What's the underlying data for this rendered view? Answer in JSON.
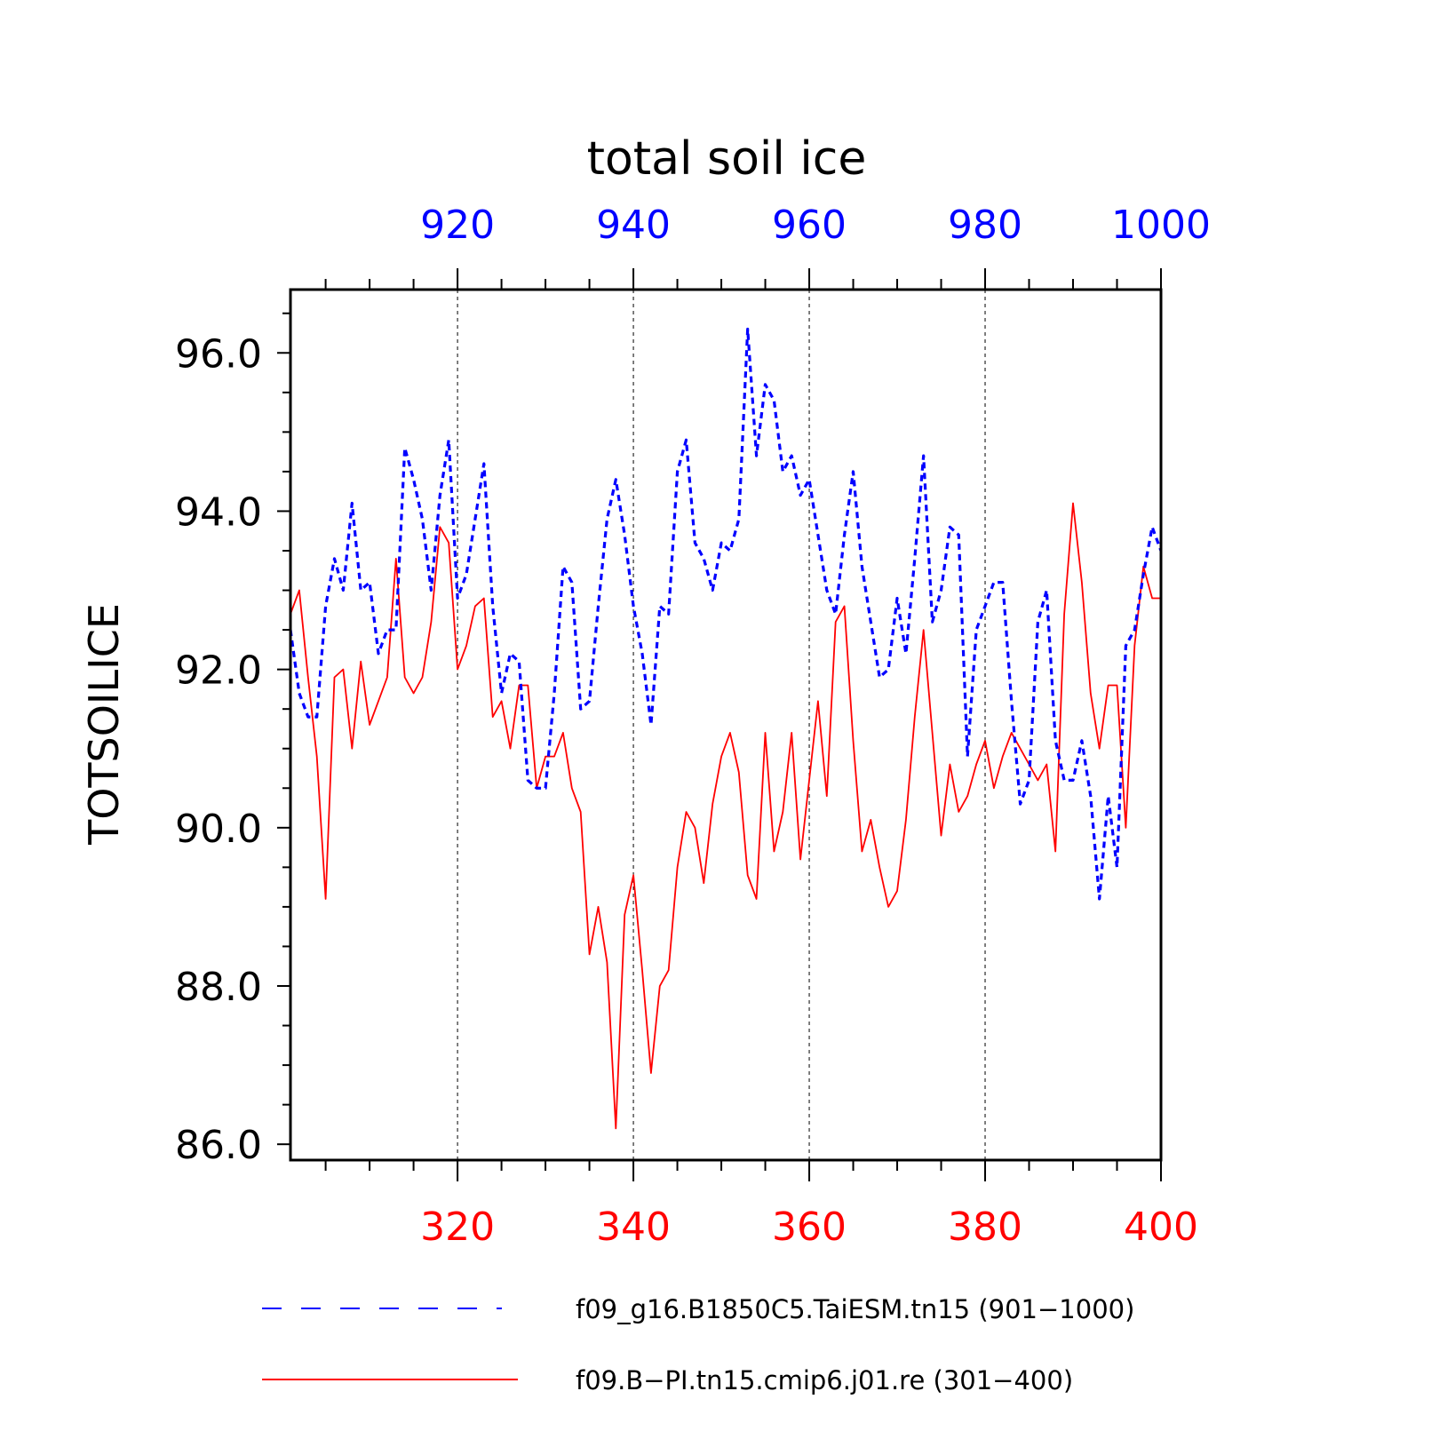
{
  "chart_data": {
    "type": "line",
    "title": "total soil ice",
    "ylabel": "TOTSOILICE",
    "ylim": [
      85.8,
      96.8
    ],
    "y_ticks": [
      "86.0",
      "88.0",
      "90.0",
      "92.0",
      "94.0",
      "96.0"
    ],
    "y_tick_values": [
      86,
      88,
      90,
      92,
      94,
      96
    ],
    "grid": "vertical dashed lines at x ticks",
    "top_axis": {
      "range": [
        901,
        1000
      ],
      "ticks": [
        "920",
        "940",
        "960",
        "980",
        "1000"
      ],
      "tick_values": [
        920,
        940,
        960,
        980,
        1000
      ],
      "color": "#0000ff"
    },
    "bottom_axis": {
      "range": [
        301,
        400
      ],
      "ticks": [
        "320",
        "340",
        "360",
        "380",
        "400"
      ],
      "tick_values": [
        320,
        340,
        360,
        380,
        400
      ],
      "color": "#ff0000"
    },
    "legend_placement": "bottom",
    "series": [
      {
        "name": "f09_g16.B1850C5.TaiESM.tn15 (901−1000)",
        "axis": "top",
        "color": "#0000ff",
        "style": "dashed",
        "x_start": 901,
        "values": [
          92.5,
          91.7,
          91.4,
          91.4,
          92.8,
          93.4,
          93.0,
          94.1,
          93.0,
          93.1,
          92.2,
          92.5,
          92.5,
          94.8,
          94.4,
          93.9,
          93.0,
          94.2,
          94.9,
          92.9,
          93.2,
          93.9,
          94.6,
          92.8,
          91.7,
          92.2,
          92.1,
          90.6,
          90.5,
          90.5,
          91.7,
          93.3,
          93.1,
          91.5,
          91.6,
          92.8,
          93.9,
          94.4,
          93.7,
          92.8,
          92.2,
          91.3,
          92.8,
          92.7,
          94.5,
          94.9,
          93.6,
          93.4,
          93.0,
          93.6,
          93.5,
          93.9,
          96.3,
          94.7,
          95.6,
          95.4,
          94.5,
          94.7,
          94.2,
          94.4,
          93.7,
          93.0,
          92.7,
          93.7,
          94.5,
          93.3,
          92.6,
          91.9,
          92.0,
          92.9,
          92.2,
          93.4,
          94.7,
          92.6,
          93.0,
          93.8,
          93.7,
          90.9,
          92.5,
          92.8,
          93.1,
          93.1,
          91.6,
          90.3,
          90.6,
          92.6,
          93.0,
          91.1,
          90.6,
          90.6,
          91.1,
          90.4,
          89.1,
          90.4,
          89.5,
          92.3,
          92.5,
          93.2,
          93.8,
          93.5
        ]
      },
      {
        "name": "f09.B−PI.tn15.cmip6.j01.re (301−400)",
        "axis": "bottom",
        "color": "#ff0000",
        "style": "solid",
        "x_start": 301,
        "values": [
          92.7,
          93.0,
          91.9,
          90.9,
          89.1,
          91.9,
          92.0,
          91.0,
          92.1,
          91.3,
          91.6,
          91.9,
          93.4,
          91.9,
          91.7,
          91.9,
          92.6,
          93.8,
          93.6,
          92.0,
          92.3,
          92.8,
          92.9,
          91.4,
          91.6,
          91.0,
          91.8,
          91.8,
          90.5,
          90.9,
          90.9,
          91.2,
          90.5,
          90.2,
          88.4,
          89.0,
          88.3,
          86.2,
          88.9,
          89.4,
          88.2,
          86.9,
          88.0,
          88.2,
          89.5,
          90.2,
          90.0,
          89.3,
          90.3,
          90.9,
          91.2,
          90.7,
          89.4,
          89.1,
          91.2,
          89.7,
          90.2,
          91.2,
          89.6,
          90.6,
          91.6,
          90.4,
          92.6,
          92.8,
          91.1,
          89.7,
          90.1,
          89.5,
          89.0,
          89.2,
          90.1,
          91.4,
          92.5,
          91.2,
          89.9,
          90.8,
          90.2,
          90.4,
          90.8,
          91.1,
          90.5,
          90.9,
          91.2,
          91.0,
          90.8,
          90.6,
          90.8,
          89.7,
          92.7,
          94.1,
          93.1,
          91.7,
          91.0,
          91.8,
          91.8,
          90.0,
          92.3,
          93.3,
          92.9,
          92.9
        ]
      }
    ]
  },
  "legend": [
    {
      "label": "f09_g16.B1850C5.TaiESM.tn15 (901−1000)"
    },
    {
      "label": "f09.B−PI.tn15.cmip6.j01.re (301−400)"
    }
  ]
}
